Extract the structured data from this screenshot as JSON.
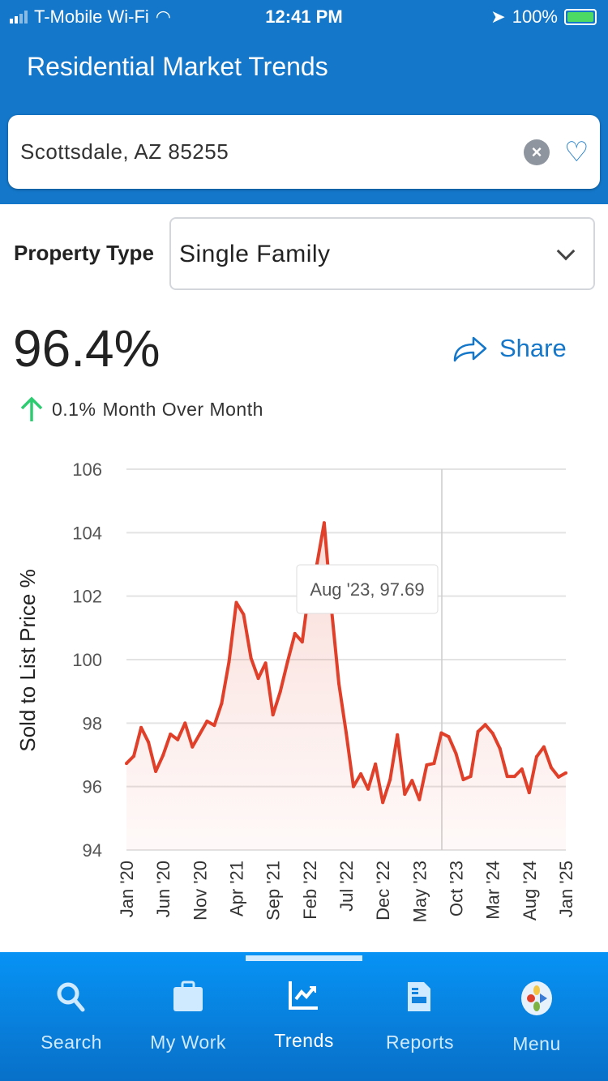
{
  "status_bar": {
    "carrier": "T-Mobile Wi-Fi",
    "time": "12:41 PM",
    "battery": "100%"
  },
  "header": {
    "title": "Residential Market Trends"
  },
  "search": {
    "value": "Scottsdale, AZ 85255",
    "clear_icon": "×",
    "favorite_icon": "♡"
  },
  "property_type": {
    "label": "Property Type",
    "selected": "Single Family"
  },
  "metric": {
    "value": "96.4%",
    "change": "0.1%",
    "change_label": "Month Over Month",
    "direction": "up",
    "up_color": "#2ecc71"
  },
  "share": {
    "label": "Share"
  },
  "chart_data": {
    "type": "area",
    "ylabel": "Sold to List Price %",
    "ylim": [
      94,
      106
    ],
    "yticks": [
      "94",
      "96",
      "98",
      "100",
      "102",
      "104",
      "106"
    ],
    "xtick_labels": [
      "Jan '20",
      "Jun '20",
      "Nov '20",
      "Apr '21",
      "Sep '21",
      "Feb '22",
      "Jul '22",
      "Dec '22",
      "May '23",
      "Oct '23",
      "Mar '24",
      "Aug '24",
      "Jan '25"
    ],
    "x_start": "Jan 2020",
    "x_end": "Jan 2025",
    "frequency": "monthly",
    "values": [
      96.73,
      96.96,
      97.86,
      97.4,
      96.48,
      96.99,
      97.65,
      97.48,
      98.0,
      97.25,
      97.65,
      98.06,
      97.93,
      98.62,
      99.93,
      101.8,
      101.42,
      100.05,
      99.41,
      99.89,
      98.26,
      98.99,
      99.93,
      100.82,
      100.56,
      102.3,
      103.0,
      104.31,
      101.6,
      99.25,
      97.7,
      96.0,
      96.4,
      95.92,
      96.71,
      95.5,
      96.22,
      97.63,
      95.76,
      96.19,
      95.59,
      96.68,
      96.73,
      97.69,
      97.57,
      97.04,
      96.22,
      96.32,
      97.73,
      97.95,
      97.68,
      97.2,
      96.32,
      96.32,
      96.55,
      95.81,
      96.94,
      97.25,
      96.6,
      96.3,
      96.43
    ],
    "line_color": "#e0402a",
    "tooltip": {
      "index": 43,
      "text": "Aug '23, 97.69"
    },
    "grid": true
  },
  "nav": {
    "items": [
      {
        "label": "Search"
      },
      {
        "label": "My Work"
      },
      {
        "label": "Trends",
        "active": true
      },
      {
        "label": "Reports"
      },
      {
        "label": "Menu"
      }
    ]
  }
}
